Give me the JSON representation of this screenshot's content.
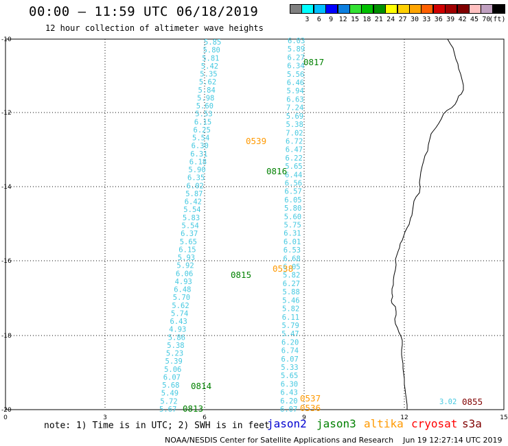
{
  "header": {
    "title": "00:00 – 11:59 UTC 06/18/2019",
    "subtitle": "12 hour collection of altimeter wave heights"
  },
  "color_scale": {
    "colors": [
      "#808080",
      "#00ffff",
      "#00bfff",
      "#0000ff",
      "#0c7fe0",
      "#33e233",
      "#00c000",
      "#009000",
      "#ffff00",
      "#ffd000",
      "#ffa500",
      "#ff6000",
      "#d00000",
      "#a00000",
      "#800000",
      "#ffc0c0",
      "#c0a0c0",
      "#000000"
    ],
    "labels": [
      "3",
      "6",
      "9",
      "12",
      "15",
      "18",
      "21",
      "24",
      "27",
      "30",
      "33",
      "36",
      "39",
      "42",
      "45",
      "70"
    ],
    "unit": "(ft)"
  },
  "axes": {
    "x_ticks": [
      "0",
      "3",
      "6",
      "9",
      "12",
      "15"
    ],
    "y_ticks": [
      "-10",
      "-12",
      "-14",
      "-16",
      "-18",
      "-20"
    ]
  },
  "tracks": {
    "color": "#44c8e0",
    "west_descending": [
      "5.85",
      "5.80",
      "5.81",
      "5.42",
      "5.35",
      "5.62",
      "5.84",
      "5.98",
      "5.60",
      "5.53",
      "6.15",
      "6.25",
      "5.54",
      "6.30",
      "6.31",
      "6.18",
      "5.90",
      "6.35",
      "6.02",
      "5.87",
      "6.42",
      "5.54",
      "5.83",
      "5.54",
      "6.37",
      "5.65",
      "6.15",
      "5.93",
      "5.92",
      "6.06",
      "4.93",
      "6.48",
      "5.70",
      "5.62",
      "5.74",
      "6.43",
      "4.93",
      "5.86",
      "5.38",
      "5.23",
      "5.39",
      "5.06",
      "6.07",
      "5.68",
      "5.49",
      "5.72",
      "5.67"
    ],
    "east_ascending": [
      "6.03",
      "5.89",
      "6.27",
      "6.34",
      "5.56",
      "6.46",
      "5.94",
      "6.63",
      "7.24",
      "5.69",
      "5.38",
      "7.02",
      "6.72",
      "6.47",
      "6.22",
      "5.65",
      "6.44",
      "6.56",
      "6.57",
      "6.05",
      "5.80",
      "5.60",
      "5.75",
      "6.31",
      "6.01",
      "6.53",
      "6.68",
      "6.05",
      "5.82",
      "6.27",
      "5.88",
      "5.46",
      "5.82",
      "6.11",
      "5.79",
      "5.47",
      "6.20",
      "6.74",
      "6.07",
      "5.33",
      "5.65",
      "6.30",
      "6.43",
      "6.20",
      "6.07"
    ],
    "coastal_value": "3.02"
  },
  "pass_times": [
    {
      "label": "0817",
      "sat": "jason3"
    },
    {
      "label": "0539",
      "sat": "altika"
    },
    {
      "label": "0816",
      "sat": "jason3"
    },
    {
      "label": "0538",
      "sat": "altika"
    },
    {
      "label": "0815",
      "sat": "jason3"
    },
    {
      "label": "0814",
      "sat": "jason3"
    },
    {
      "label": "0813",
      "sat": "jason3"
    },
    {
      "label": "0537",
      "sat": "altika"
    },
    {
      "label": "0536",
      "sat": "altika"
    },
    {
      "label": "0855",
      "sat": "s3a"
    }
  ],
  "sat_colors": {
    "jason2": "#0000d0",
    "jason3": "#008000",
    "altika": "#ff9900",
    "cryosat": "#ff0000",
    "s3a": "#800000"
  },
  "footer": {
    "note": "note: 1) Time is in UTC; 2) SWH is in feet",
    "satellites": [
      {
        "name": "jason2",
        "color": "#0000d0"
      },
      {
        "name": "jason3",
        "color": "#008000"
      },
      {
        "name": "altika",
        "color": "#ff9900"
      },
      {
        "name": "cryosat",
        "color": "#ff0000"
      },
      {
        "name": "s3a",
        "color": "#800000"
      }
    ],
    "credit": "NOAA/NESDIS Center for Satellite Applications and Research    Jun 19 12:27:14 UTC 2019"
  }
}
